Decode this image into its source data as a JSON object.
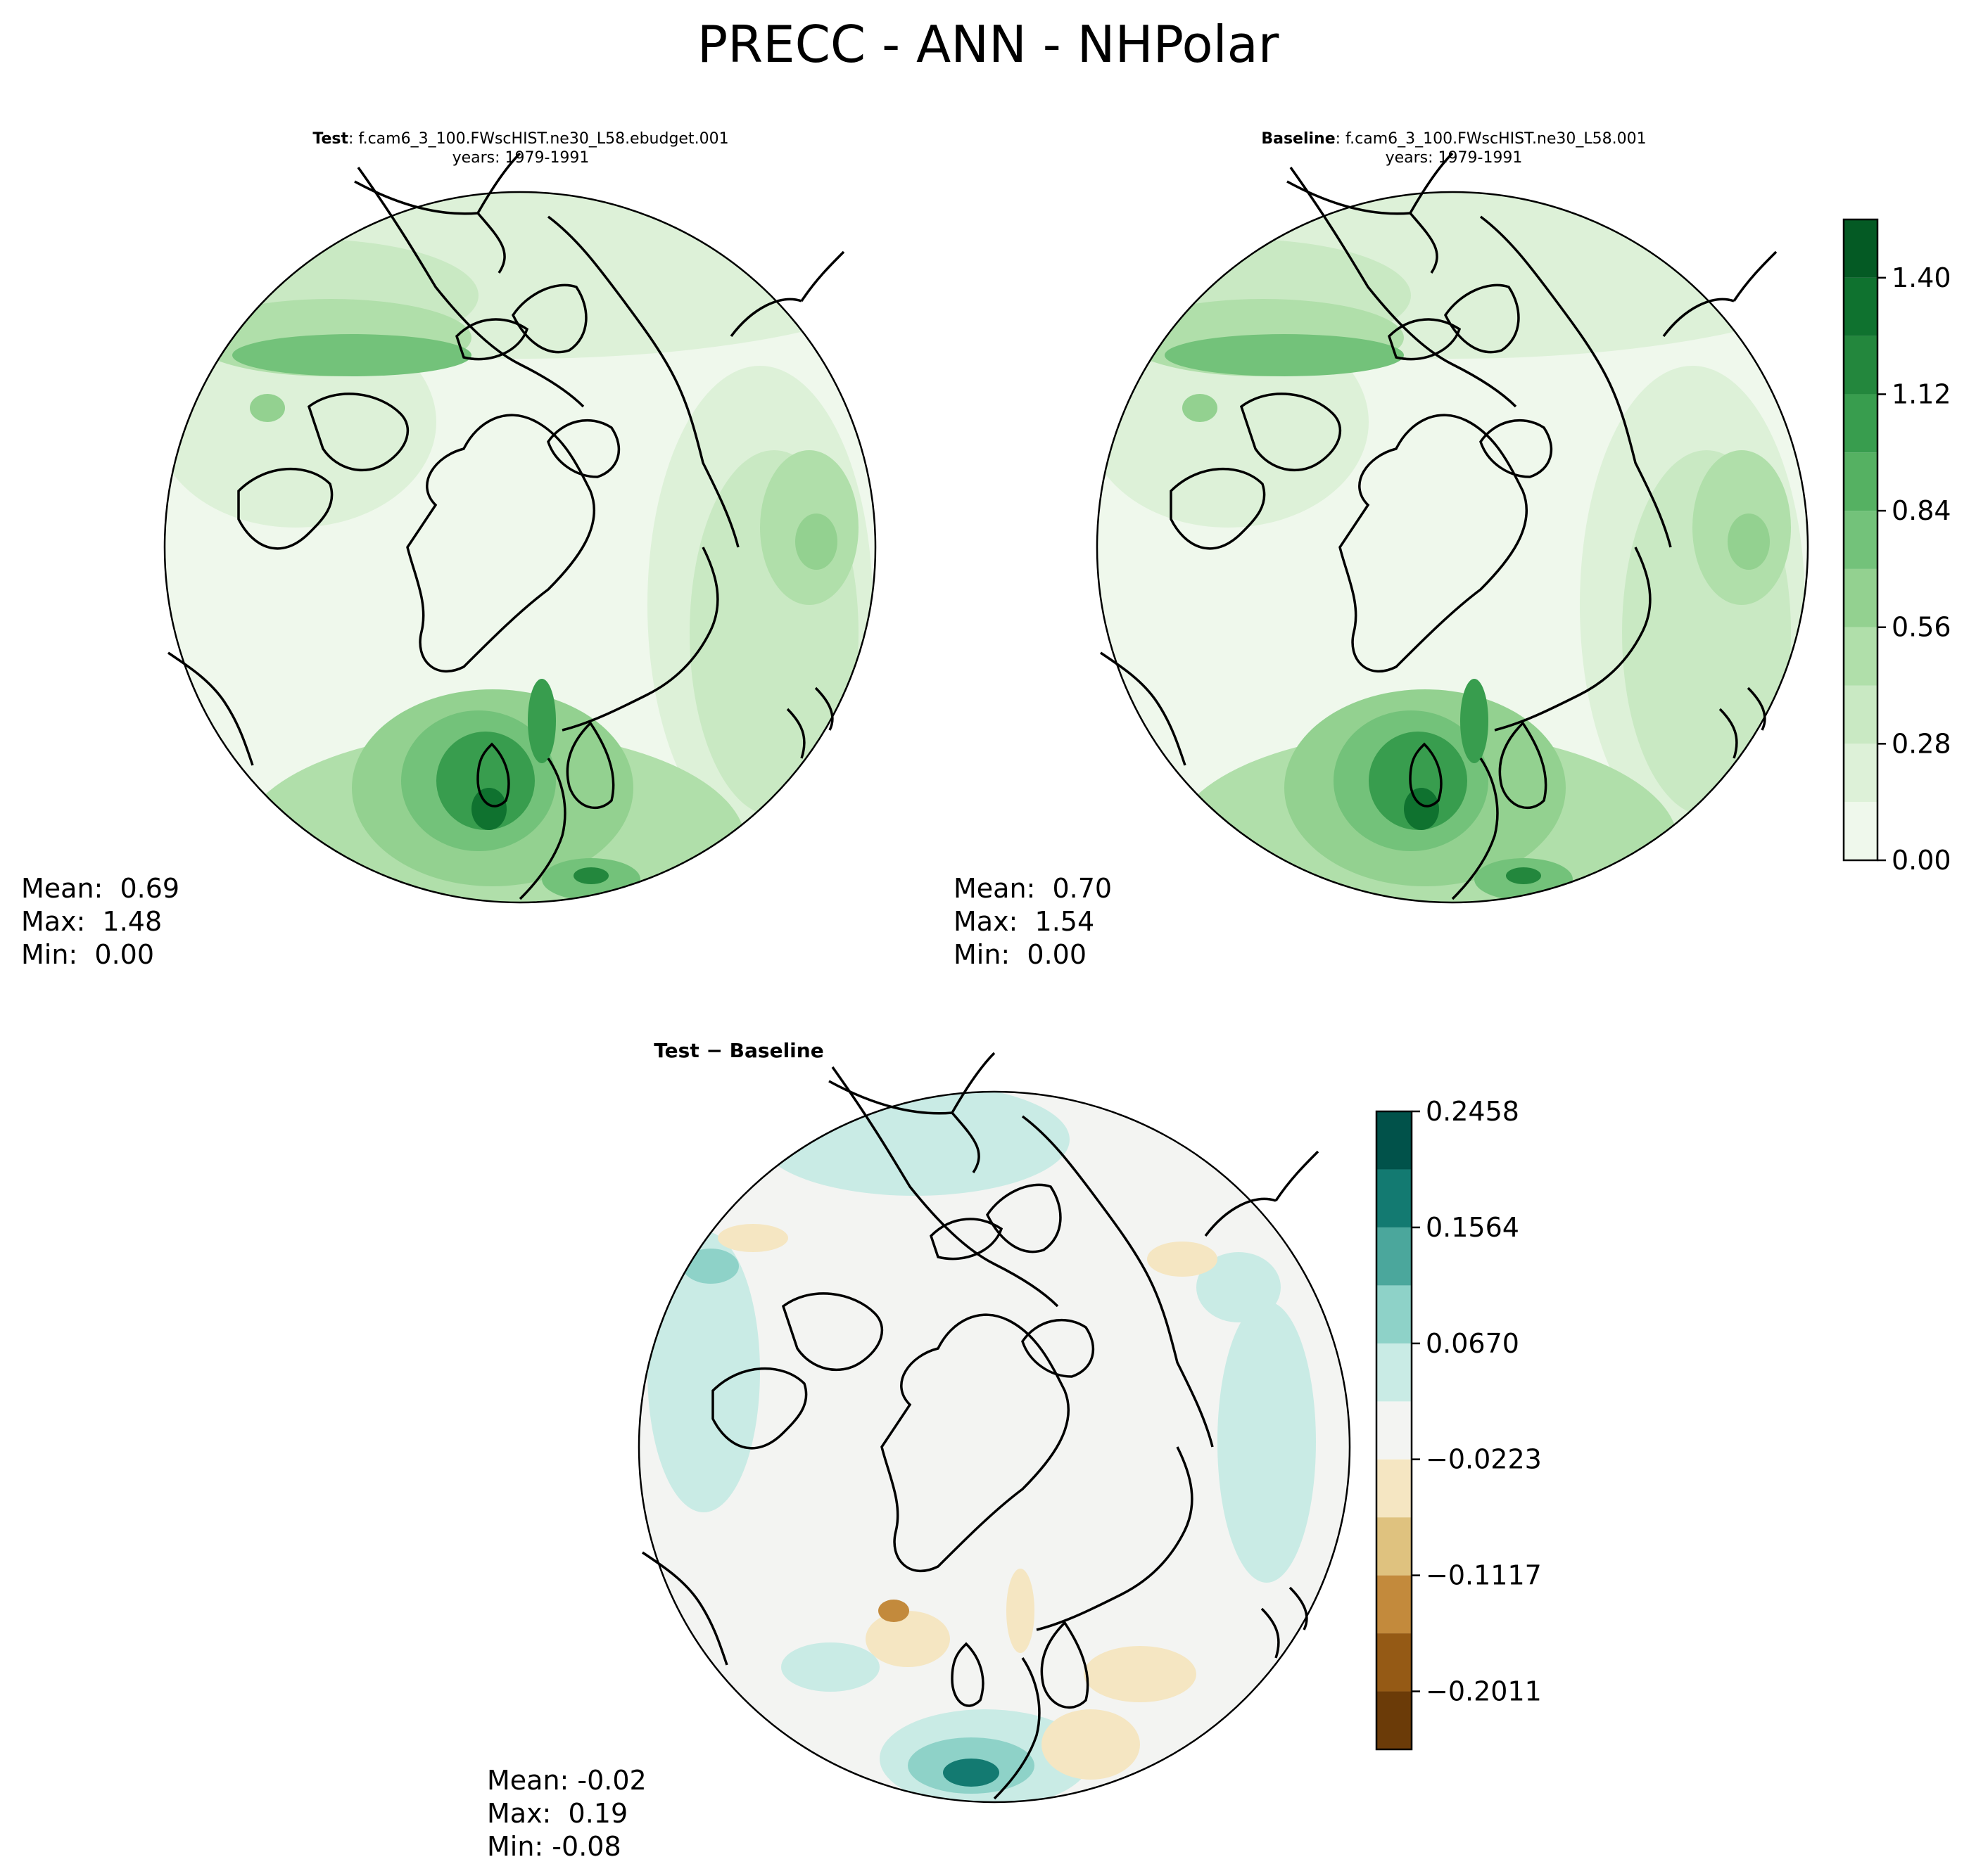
{
  "suptitle": "PRECC - ANN - NHPolar",
  "panels": {
    "test": {
      "title_bold": "Test",
      "title_text": ": f.cam6_3_100.FWscHIST.ne30_L58.ebudget.001",
      "years": "years: 1979-1991",
      "stats": {
        "mean": "Mean:  0.69",
        "max": "Max:  1.48",
        "min": "Min:  0.00"
      }
    },
    "baseline": {
      "title_bold": "Baseline",
      "title_text": ": f.cam6_3_100.FWscHIST.ne30_L58.001",
      "years": "years: 1979-1991",
      "stats": {
        "mean": "Mean:  0.70",
        "max": "Max:  1.54",
        "min": "Min:  0.00"
      }
    },
    "diff": {
      "title": "Test − Baseline",
      "stats": {
        "mean": "Mean: -0.02",
        "max": "Max:  0.19",
        "min": "Min: -0.08"
      }
    }
  },
  "chart_data": [
    {
      "type": "heatmap",
      "name": "Test",
      "projection": "north polar stereographic",
      "mean": 0.69,
      "max": 1.48,
      "min": 0.0,
      "colormap": "greens",
      "colorbar": {
        "levels": [
          0.0,
          0.14,
          0.28,
          0.42,
          0.56,
          0.7,
          0.84,
          0.98,
          1.12,
          1.26,
          1.4,
          1.54
        ],
        "tick_labels": [
          "0.00",
          "0.28",
          "0.56",
          "0.84",
          "1.12",
          "1.40"
        ],
        "colors": [
          "#eff8ec",
          "#ddf1d8",
          "#c9e9c3",
          "#b0dfaa",
          "#93d190",
          "#73c27a",
          "#55b162",
          "#389d4e",
          "#23873d",
          "#0f722f",
          "#045a24"
        ]
      }
    },
    {
      "type": "heatmap",
      "name": "Baseline",
      "projection": "north polar stereographic",
      "mean": 0.7,
      "max": 1.54,
      "min": 0.0,
      "colormap": "greens",
      "colorbar": "shared with Test"
    },
    {
      "type": "heatmap",
      "name": "Test − Baseline",
      "projection": "north polar stereographic",
      "mean": -0.02,
      "max": 0.19,
      "min": -0.08,
      "colormap": "brown-white-teal (diverging)",
      "colorbar": {
        "levels": [
          -0.2458,
          -0.2011,
          -0.1564,
          -0.1117,
          -0.067,
          -0.0223,
          0.0223,
          0.067,
          0.1117,
          0.1564,
          0.2011,
          0.2458
        ],
        "tick_labels": [
          "−0.2011",
          "−0.1117",
          "−0.0223",
          "0.0670",
          "0.1564",
          "0.2458"
        ],
        "colors": [
          "#6b3b08",
          "#955a15",
          "#c38a3c",
          "#dfc27f",
          "#f5e6c2",
          "#f3f4f2",
          "#c9ebe5",
          "#8ed2c8",
          "#4ba79c",
          "#137a71",
          "#01524a"
        ]
      }
    }
  ]
}
